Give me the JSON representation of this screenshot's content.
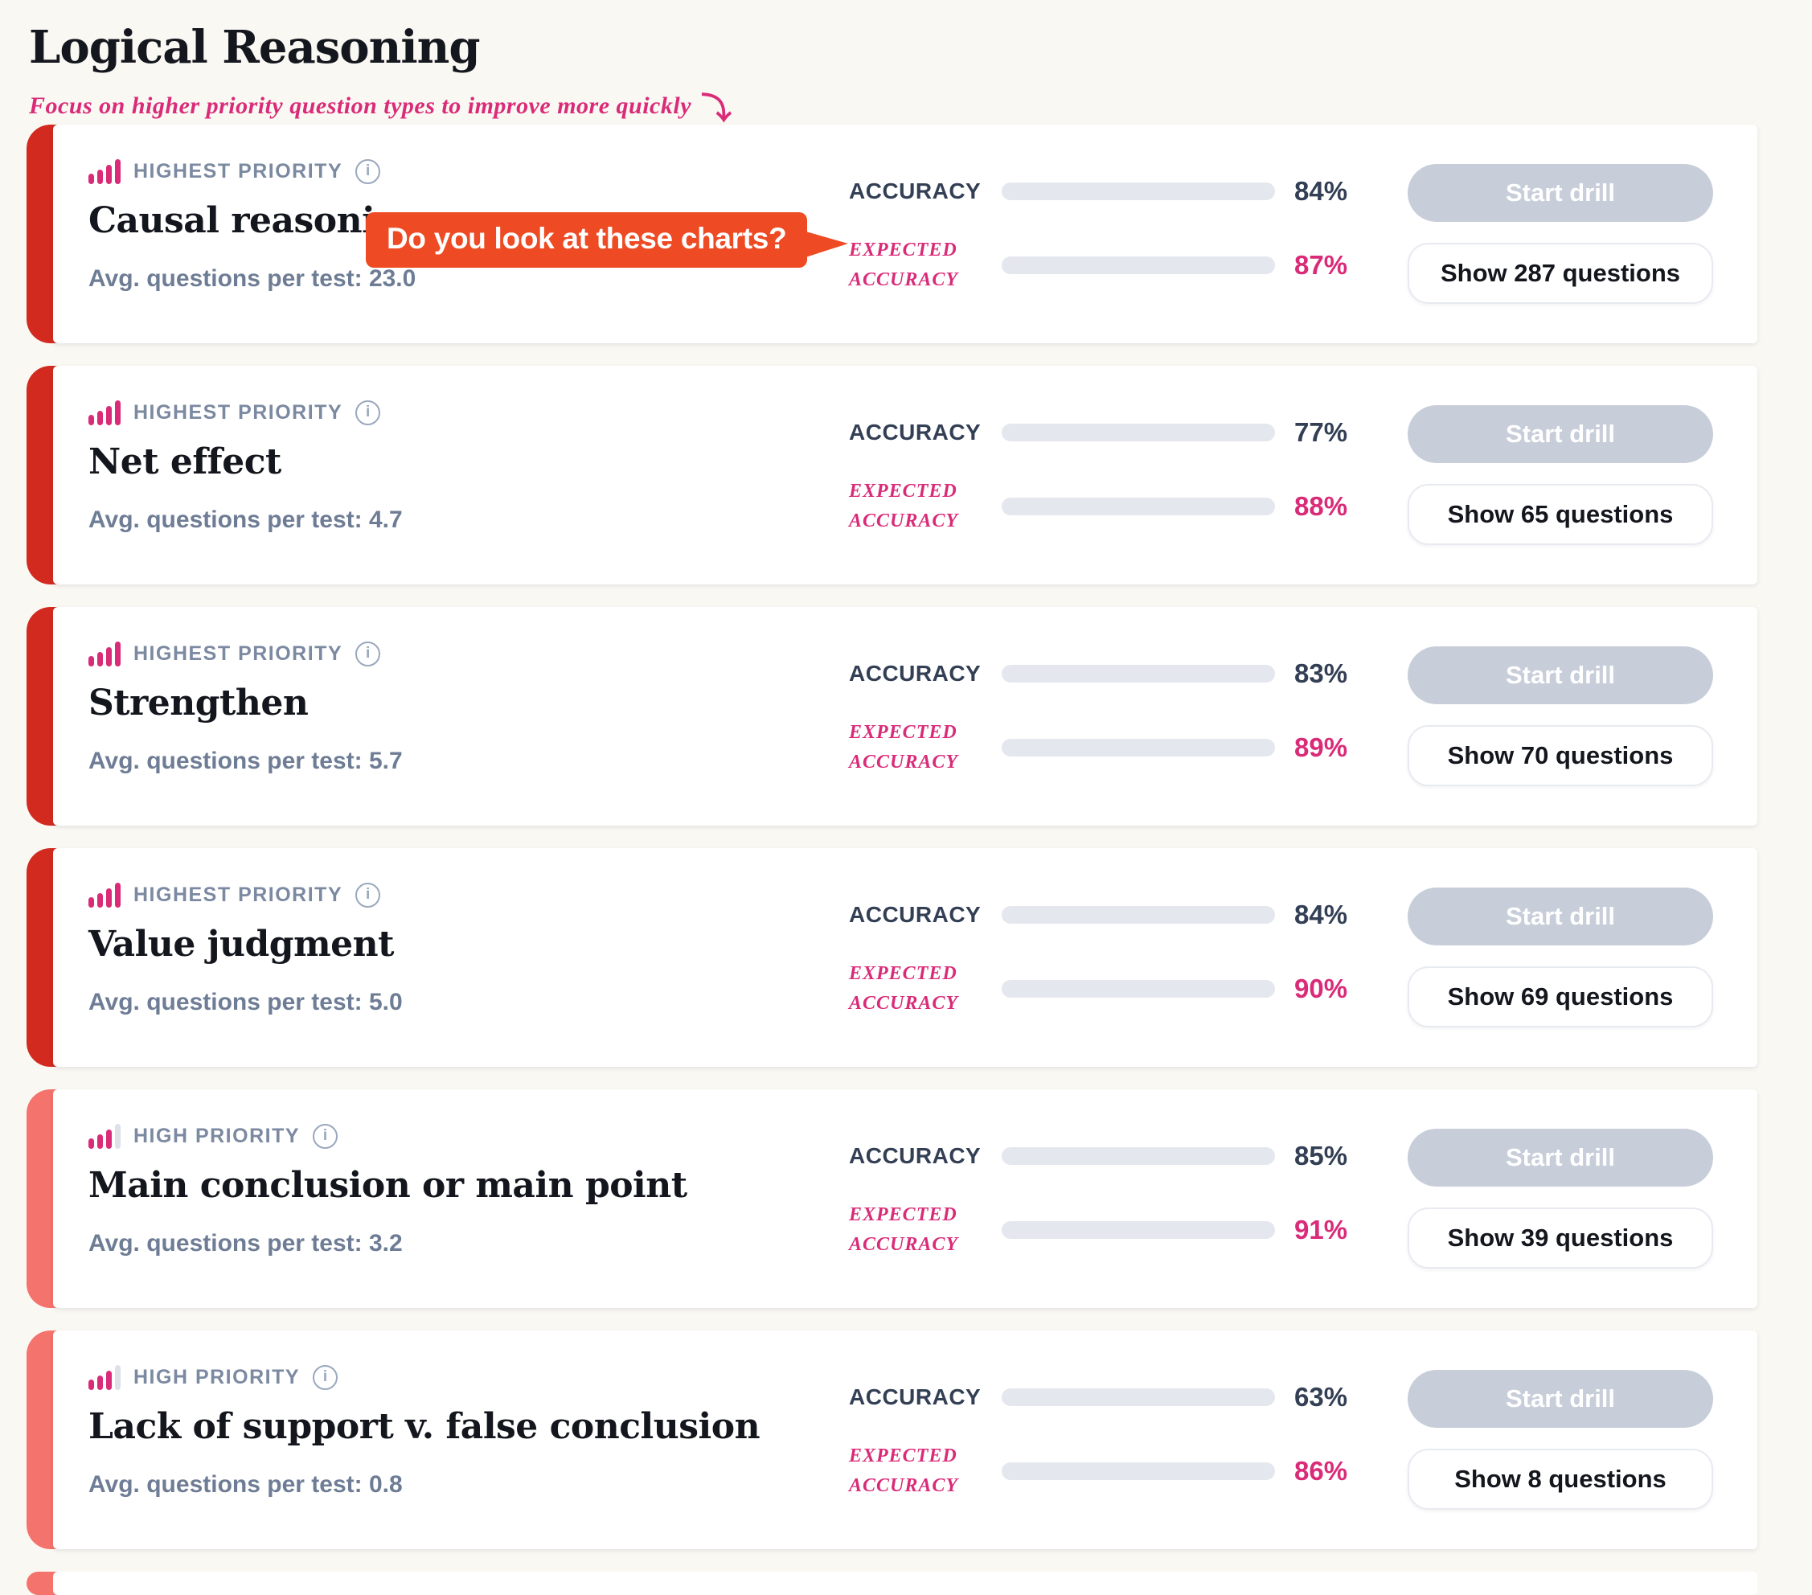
{
  "page": {
    "title": "Logical Reasoning",
    "subtitle": "Focus on higher priority question types to improve more quickly",
    "subtitle_arrow": "⤵",
    "callout": "Do you look at these charts?"
  },
  "labels": {
    "accuracy": "ACCURACY",
    "expected_line1": "EXPECTED",
    "expected_line2": "ACCURACY",
    "start_drill": "Start drill",
    "info_icon_glyph": "i"
  },
  "colors": {
    "accent_pink": "#d92b78",
    "navy": "#333f54",
    "stripe_red": "#d32a20",
    "stripe_salmon": "#f4736c",
    "callout_orange": "#ee4a23",
    "page_bg": "#faf8f3"
  },
  "cards": [
    {
      "level": "highest",
      "priority_label": "HIGHEST PRIORITY",
      "title": "Causal reasoning",
      "avg": "Avg. questions per test: 23.0",
      "accuracy_pct": 84,
      "accuracy_text": "84%",
      "expected_pct": 87,
      "expected_text": "87%",
      "show_label": "Show 287 questions"
    },
    {
      "level": "highest",
      "priority_label": "HIGHEST PRIORITY",
      "title": "Net effect",
      "avg": "Avg. questions per test: 4.7",
      "accuracy_pct": 77,
      "accuracy_text": "77%",
      "expected_pct": 88,
      "expected_text": "88%",
      "show_label": "Show 65 questions"
    },
    {
      "level": "highest",
      "priority_label": "HIGHEST PRIORITY",
      "title": "Strengthen",
      "avg": "Avg. questions per test: 5.7",
      "accuracy_pct": 83,
      "accuracy_text": "83%",
      "expected_pct": 89,
      "expected_text": "89%",
      "show_label": "Show 70 questions"
    },
    {
      "level": "highest",
      "priority_label": "HIGHEST PRIORITY",
      "title": "Value judgment",
      "avg": "Avg. questions per test: 5.0",
      "accuracy_pct": 84,
      "accuracy_text": "84%",
      "expected_pct": 90,
      "expected_text": "90%",
      "show_label": "Show 69 questions"
    },
    {
      "level": "high",
      "priority_label": "HIGH PRIORITY",
      "title": "Main conclusion or main point",
      "avg": "Avg. questions per test: 3.2",
      "accuracy_pct": 85,
      "accuracy_text": "85%",
      "expected_pct": 91,
      "expected_text": "91%",
      "show_label": "Show 39 questions"
    },
    {
      "level": "high",
      "priority_label": "HIGH PRIORITY",
      "title": "Lack of support v. false conclusion",
      "avg": "Avg. questions per test: 0.8",
      "accuracy_pct": 63,
      "accuracy_text": "63%",
      "expected_pct": 86,
      "expected_text": "86%",
      "show_label": "Show 8 questions"
    },
    {
      "level": "high",
      "partial": true
    }
  ]
}
